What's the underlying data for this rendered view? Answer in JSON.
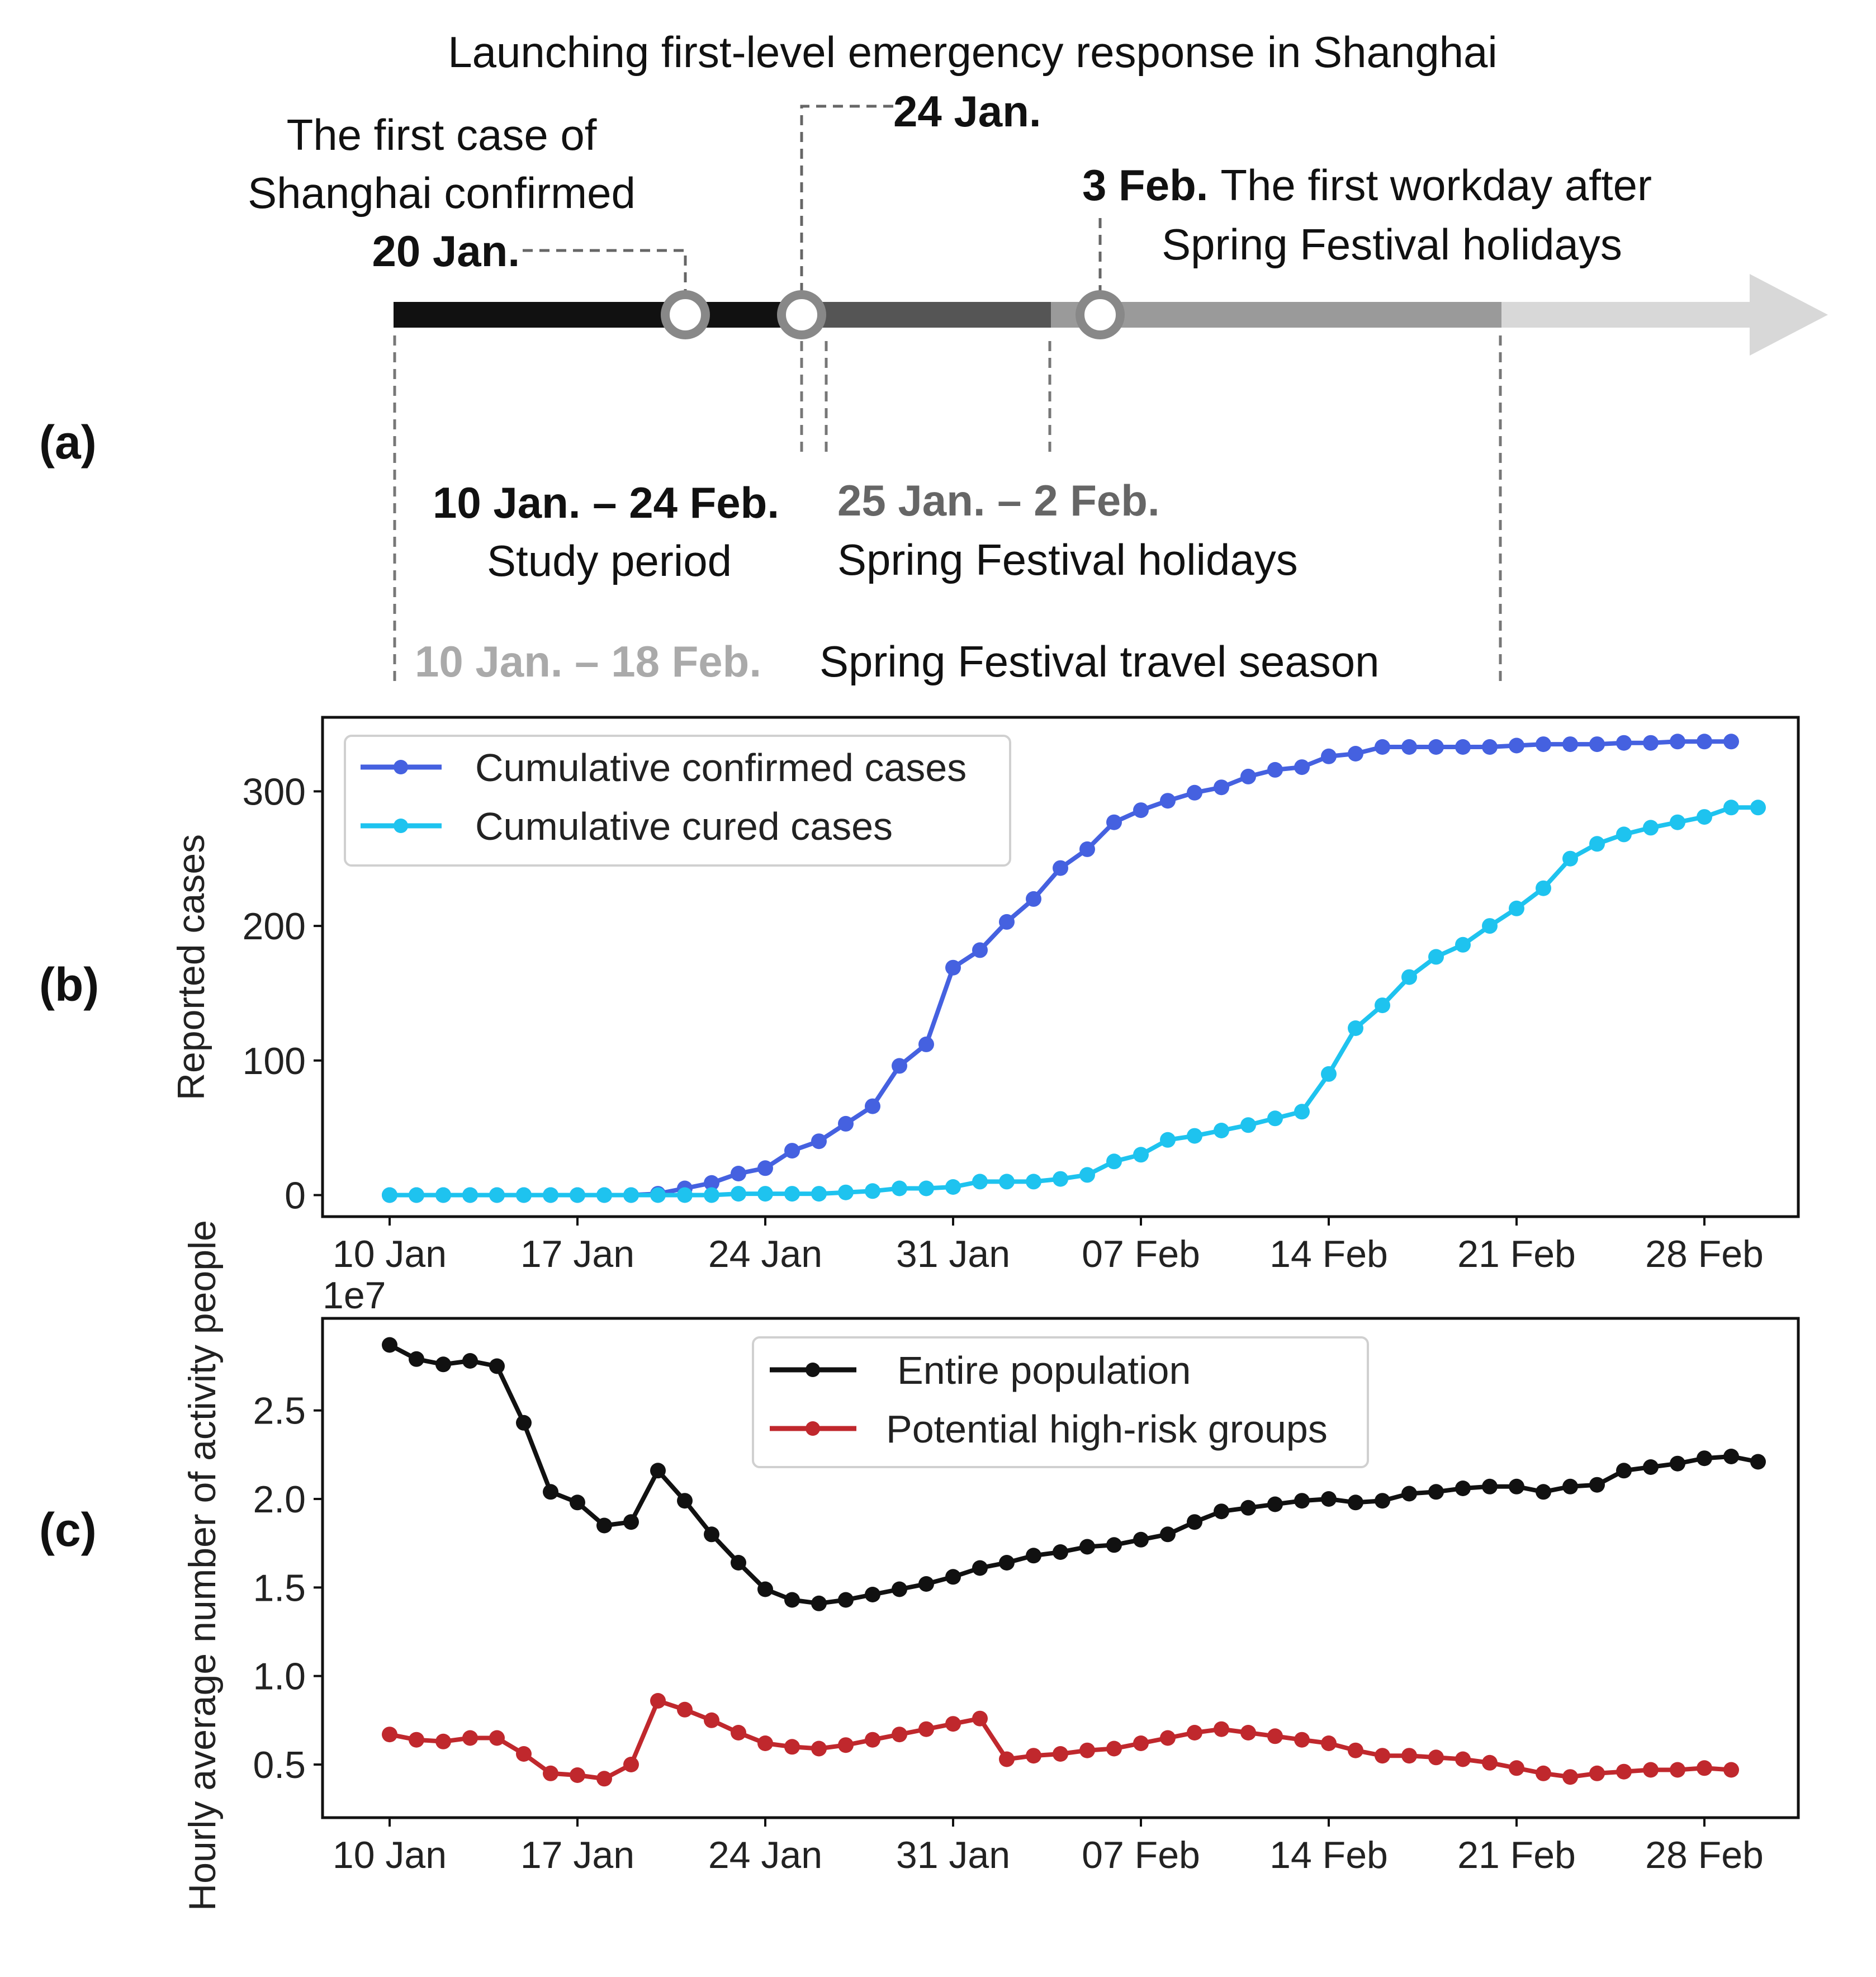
{
  "panel_labels": {
    "a": "(a)",
    "b": "(b)",
    "c": "(c)"
  },
  "timeline": {
    "events": [
      {
        "id": "ev1",
        "lines": [
          "The first case of",
          "Shanghai confirmed"
        ],
        "date": "20 Jan."
      },
      {
        "id": "ev2",
        "title": "Launching first-level emergency response in Shanghai",
        "date": "24 Jan."
      },
      {
        "id": "ev3",
        "date": "3 Feb.",
        "text": "The first workday after",
        "text2": "Spring Festival holidays"
      }
    ],
    "periods": [
      {
        "id": "study",
        "range": "10 Jan. – 24 Feb.",
        "label": "Study period",
        "color": "#111111"
      },
      {
        "id": "holiday",
        "range": "25 Jan. – 2 Feb.",
        "label": "Spring Festival holidays",
        "color": "#666666"
      },
      {
        "id": "travel",
        "range": "10 Jan. – 18 Feb.",
        "label": "Spring Festival travel season",
        "color": "#aaaaaa"
      }
    ],
    "colors": {
      "seg1": "#111111",
      "seg2": "#555555",
      "seg3": "#999999",
      "seg4": "#d8d8d8",
      "marker": "#888888"
    }
  },
  "chart_data": [
    {
      "id": "b",
      "type": "line",
      "x_tick_labels": [
        "10 Jan",
        "17 Jan",
        "24 Jan",
        "31 Jan",
        "07 Feb",
        "14 Feb",
        "21 Feb",
        "28 Feb"
      ],
      "x_tick_days": [
        0,
        7,
        14,
        21,
        28,
        35,
        42,
        49
      ],
      "xlim": [
        -2.5,
        52.5
      ],
      "ylabel": "Reported cases",
      "yticks": [
        0,
        100,
        200,
        300
      ],
      "ylim": [
        -16,
        355
      ],
      "legend_loc": "upper left",
      "series": [
        {
          "name": "Cumulative confirmed cases",
          "color": "#4561e0",
          "values": [
            0,
            0,
            0,
            0,
            0,
            0,
            0,
            0,
            0,
            0,
            1,
            5,
            9,
            16,
            20,
            33,
            40,
            53,
            66,
            96,
            112,
            169,
            182,
            203,
            220,
            243,
            257,
            277,
            286,
            293,
            299,
            303,
            311,
            316,
            318,
            326,
            328,
            333,
            333,
            333,
            333,
            333,
            334,
            335,
            335,
            335,
            336,
            336,
            337,
            337,
            337
          ]
        },
        {
          "name": "Cumulative cured cases",
          "color": "#1ec3ef",
          "values": [
            0,
            0,
            0,
            0,
            0,
            0,
            0,
            0,
            0,
            0,
            0,
            0,
            0,
            1,
            1,
            1,
            1,
            2,
            3,
            5,
            5,
            6,
            10,
            10,
            10,
            12,
            15,
            25,
            30,
            41,
            44,
            48,
            52,
            57,
            62,
            90,
            124,
            141,
            162,
            177,
            186,
            200,
            213,
            228,
            250,
            261,
            268,
            273,
            277,
            281,
            288,
            288
          ]
        }
      ]
    },
    {
      "id": "c",
      "type": "line",
      "x_tick_labels": [
        "10 Jan",
        "17 Jan",
        "24 Jan",
        "31 Jan",
        "07 Feb",
        "14 Feb",
        "21 Feb",
        "28 Feb"
      ],
      "x_tick_days": [
        0,
        7,
        14,
        21,
        28,
        35,
        42,
        49
      ],
      "xlim": [
        -2.5,
        52.5
      ],
      "ylabel": "Hourly average number of activity people",
      "offset_text": "1e7",
      "yticks": [
        0.5,
        1.0,
        1.5,
        2.0,
        2.5
      ],
      "ytick_labels": [
        "0.5",
        "1.0",
        "1.5",
        "2.0",
        "2.5"
      ],
      "ylim": [
        0.2,
        3.02
      ],
      "legend_loc": "upper center",
      "series": [
        {
          "name": "Entire population",
          "color": "#111111",
          "values": [
            2.87,
            2.79,
            2.76,
            2.78,
            2.75,
            2.43,
            2.04,
            1.98,
            1.85,
            1.87,
            2.16,
            1.99,
            1.8,
            1.64,
            1.49,
            1.43,
            1.41,
            1.43,
            1.46,
            1.49,
            1.52,
            1.56,
            1.61,
            1.64,
            1.68,
            1.7,
            1.73,
            1.74,
            1.77,
            1.8,
            1.87,
            1.93,
            1.95,
            1.97,
            1.99,
            2.0,
            1.98,
            1.99,
            2.03,
            2.04,
            2.06,
            2.07,
            2.07,
            2.04,
            2.07,
            2.08,
            2.16,
            2.18,
            2.2,
            2.23,
            2.24,
            2.21
          ]
        },
        {
          "name": "Potential high-risk groups",
          "color": "#c0282d",
          "values": [
            0.67,
            0.64,
            0.63,
            0.65,
            0.65,
            0.56,
            0.45,
            0.44,
            0.42,
            0.5,
            0.86,
            0.81,
            0.75,
            0.68,
            0.62,
            0.6,
            0.59,
            0.61,
            0.64,
            0.67,
            0.7,
            0.73,
            0.76,
            0.53,
            0.55,
            0.56,
            0.58,
            0.59,
            0.62,
            0.65,
            0.68,
            0.7,
            0.68,
            0.66,
            0.64,
            0.62,
            0.58,
            0.55,
            0.55,
            0.54,
            0.53,
            0.51,
            0.48,
            0.45,
            0.43,
            0.45,
            0.46,
            0.47,
            0.47,
            0.48,
            0.47
          ]
        }
      ]
    }
  ]
}
